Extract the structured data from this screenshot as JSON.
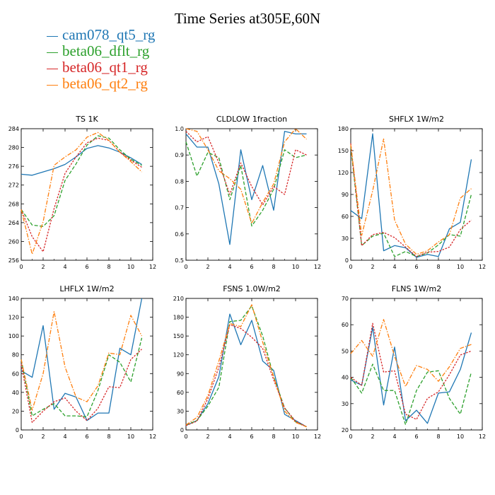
{
  "title": "Time Series at305E,60N",
  "legend": [
    {
      "name": "cam078_qt5_rg",
      "color": "#1f77b4"
    },
    {
      "name": "beta06_dflt_rg",
      "color": "#2ca02c"
    },
    {
      "name": "beta06_qt1_rg",
      "color": "#d62728"
    },
    {
      "name": "beta06_qt2_rg",
      "color": "#ff7f0e"
    }
  ],
  "chart_data": [
    {
      "type": "line",
      "title": "TS   1K",
      "x": [
        0,
        1,
        2,
        3,
        4,
        5,
        6,
        7,
        8,
        9,
        10,
        11
      ],
      "xlim": [
        0,
        12
      ],
      "ylim": [
        256,
        284
      ],
      "xticks": [
        0,
        2,
        4,
        6,
        8,
        10,
        12
      ],
      "yticks": [
        256,
        260,
        264,
        268,
        272,
        276,
        280,
        284
      ],
      "series": [
        {
          "name": "cam078_qt5_rg",
          "values": [
            274.3,
            274.1,
            274.8,
            275.5,
            276.4,
            278.0,
            279.8,
            280.4,
            279.9,
            279.0,
            277.8,
            276.4
          ]
        },
        {
          "name": "beta06_dflt_rg",
          "values": [
            266.8,
            263.5,
            263.2,
            265.5,
            273.0,
            276.5,
            280.5,
            282.5,
            282.0,
            279.5,
            277.5,
            276.2
          ]
        },
        {
          "name": "beta06_qt1_rg",
          "values": [
            266.8,
            261.0,
            257.8,
            267.0,
            274.5,
            278.0,
            281.0,
            282.0,
            281.5,
            279.0,
            277.3,
            275.8
          ]
        },
        {
          "name": "beta06_qt2_rg",
          "values": [
            266.8,
            257.3,
            264.2,
            276.2,
            278.0,
            279.5,
            282.2,
            283.2,
            281.5,
            279.0,
            277.0,
            274.8
          ]
        }
      ]
    },
    {
      "type": "line",
      "title": "CLDLOW   1fraction",
      "x": [
        0,
        1,
        2,
        3,
        4,
        5,
        6,
        7,
        8,
        9,
        10,
        11
      ],
      "xlim": [
        0,
        12
      ],
      "ylim": [
        0.5,
        1.0
      ],
      "xticks": [
        0,
        2,
        4,
        6,
        8,
        10,
        12
      ],
      "yticks": [
        0.5,
        0.6,
        0.7,
        0.8,
        0.9,
        1.0
      ],
      "series": [
        {
          "name": "cam078_qt5_rg",
          "values": [
            0.98,
            0.93,
            0.93,
            0.79,
            0.56,
            0.92,
            0.73,
            0.86,
            0.69,
            0.99,
            0.98,
            0.98
          ]
        },
        {
          "name": "beta06_dflt_rg",
          "values": [
            0.95,
            0.82,
            0.91,
            0.89,
            0.73,
            0.86,
            0.63,
            0.69,
            0.77,
            0.92,
            0.89,
            0.9
          ]
        },
        {
          "name": "beta06_qt1_rg",
          "values": [
            0.99,
            0.95,
            0.97,
            0.87,
            0.75,
            0.87,
            0.78,
            0.71,
            0.78,
            0.75,
            0.92,
            0.9
          ]
        },
        {
          "name": "beta06_qt2_rg",
          "values": [
            1.0,
            0.99,
            0.92,
            0.84,
            0.81,
            0.77,
            0.64,
            0.72,
            0.79,
            0.95,
            1.0,
            0.96
          ]
        }
      ]
    },
    {
      "type": "line",
      "title": "SHFLX   1W/m2",
      "x": [
        0,
        1,
        2,
        3,
        4,
        5,
        6,
        7,
        8,
        9,
        10,
        11
      ],
      "xlim": [
        0,
        12
      ],
      "ylim": [
        0,
        180
      ],
      "xticks": [
        0,
        2,
        4,
        6,
        8,
        10,
        12
      ],
      "yticks": [
        0,
        30,
        60,
        90,
        120,
        150,
        180
      ],
      "series": [
        {
          "name": "cam078_qt5_rg",
          "values": [
            68,
            57,
            173,
            13,
            20,
            17,
            4,
            8,
            5,
            43,
            52,
            138
          ]
        },
        {
          "name": "beta06_dflt_rg",
          "values": [
            155,
            20,
            33,
            37,
            5,
            12,
            5,
            10,
            21,
            35,
            33,
            90
          ]
        },
        {
          "name": "beta06_qt1_rg",
          "values": [
            160,
            20,
            35,
            38,
            31,
            18,
            5,
            11,
            12,
            18,
            42,
            55
          ]
        },
        {
          "name": "beta06_qt2_rg",
          "values": [
            158,
            34,
            95,
            166,
            55,
            22,
            8,
            13,
            25,
            35,
            85,
            98
          ]
        }
      ]
    },
    {
      "type": "line",
      "title": "LHFLX   1W/m2",
      "x": [
        0,
        1,
        2,
        3,
        4,
        5,
        6,
        7,
        8,
        9,
        10,
        11
      ],
      "xlim": [
        0,
        12
      ],
      "ylim": [
        0,
        140
      ],
      "xticks": [
        0,
        2,
        4,
        6,
        8,
        10,
        12
      ],
      "yticks": [
        0,
        20,
        40,
        60,
        80,
        100,
        120,
        140
      ],
      "series": [
        {
          "name": "cam078_qt5_rg",
          "values": [
            63,
            56,
            111,
            22,
            39,
            35,
            10,
            18,
            18,
            87,
            80,
            140
          ]
        },
        {
          "name": "beta06_dflt_rg",
          "values": [
            75,
            15,
            22,
            28,
            15,
            15,
            14,
            42,
            80,
            72,
            51,
            98
          ]
        },
        {
          "name": "beta06_qt1_rg",
          "values": [
            70,
            8,
            20,
            30,
            34,
            20,
            10,
            23,
            46,
            45,
            75,
            86
          ]
        },
        {
          "name": "beta06_qt2_rg",
          "values": [
            75,
            21,
            60,
            126,
            67,
            35,
            30,
            47,
            82,
            80,
            122,
            100
          ]
        }
      ]
    },
    {
      "type": "line",
      "title": "FSNS   1.0W/m2",
      "x": [
        0,
        1,
        2,
        3,
        4,
        5,
        6,
        7,
        8,
        9,
        10,
        11
      ],
      "xlim": [
        0,
        12
      ],
      "ylim": [
        0,
        210
      ],
      "xticks": [
        0,
        2,
        4,
        6,
        8,
        10,
        12
      ],
      "yticks": [
        0,
        30,
        60,
        90,
        120,
        150,
        180,
        210
      ],
      "series": [
        {
          "name": "cam078_qt5_rg",
          "values": [
            7,
            15,
            42,
            85,
            185,
            136,
            175,
            110,
            95,
            25,
            15,
            5
          ]
        },
        {
          "name": "beta06_dflt_rg",
          "values": [
            8,
            15,
            38,
            68,
            173,
            175,
            198,
            150,
            85,
            35,
            13,
            5
          ]
        },
        {
          "name": "beta06_qt1_rg",
          "values": [
            7,
            14,
            50,
            100,
            168,
            162,
            148,
            130,
            80,
            35,
            14,
            5
          ]
        },
        {
          "name": "beta06_qt2_rg",
          "values": [
            8,
            20,
            55,
            110,
            170,
            165,
            200,
            140,
            85,
            30,
            12,
            5
          ]
        }
      ]
    },
    {
      "type": "line",
      "title": "FLNS   1W/m2",
      "x": [
        0,
        1,
        2,
        3,
        4,
        5,
        6,
        7,
        8,
        9,
        10,
        11
      ],
      "xlim": [
        0,
        12
      ],
      "ylim": [
        20,
        70
      ],
      "xticks": [
        0,
        2,
        4,
        6,
        8,
        10,
        12
      ],
      "yticks": [
        20,
        30,
        40,
        50,
        60,
        70
      ],
      "series": [
        {
          "name": "cam078_qt5_rg",
          "values": [
            39,
            37,
            59,
            29.5,
            51.5,
            23.5,
            27.5,
            22.5,
            34,
            34.5,
            43,
            57
          ]
        },
        {
          "name": "beta06_dflt_rg",
          "values": [
            40,
            34,
            45,
            35,
            35,
            22,
            35,
            42,
            42.5,
            32,
            26,
            42
          ]
        },
        {
          "name": "beta06_qt1_rg",
          "values": [
            40,
            37,
            60.5,
            42,
            42.5,
            26,
            24,
            32,
            34.5,
            41,
            48.5,
            50
          ]
        },
        {
          "name": "beta06_qt2_rg",
          "values": [
            49,
            54,
            48,
            62,
            48,
            36.5,
            44.5,
            43,
            38.5,
            44,
            51,
            52.5
          ]
        }
      ]
    }
  ]
}
